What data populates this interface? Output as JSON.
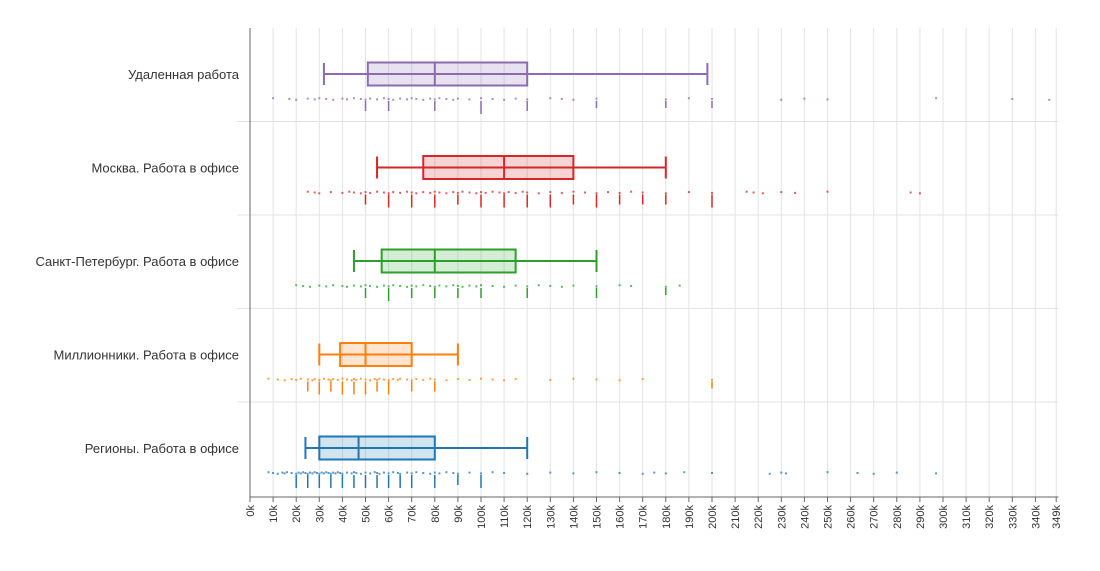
{
  "chart_data": {
    "type": "boxplot",
    "orientation": "horizontal",
    "title": "",
    "xlabel": "",
    "ylabel": "",
    "xlim": [
      0,
      350
    ],
    "x_ticks": [
      "0k",
      "10k",
      "20k",
      "30k",
      "40k",
      "50k",
      "60k",
      "70k",
      "80k",
      "90k",
      "100k",
      "110k",
      "120k",
      "130k",
      "140k",
      "150k",
      "160k",
      "170k",
      "180k",
      "190k",
      "200k",
      "210k",
      "220k",
      "230k",
      "240k",
      "250k",
      "260k",
      "270k",
      "280k",
      "290k",
      "300k",
      "310k",
      "320k",
      "330k",
      "340k",
      "349k"
    ],
    "x_tick_values": [
      0,
      10,
      20,
      30,
      40,
      50,
      60,
      70,
      80,
      90,
      100,
      110,
      120,
      130,
      140,
      150,
      160,
      170,
      180,
      190,
      200,
      210,
      220,
      230,
      240,
      250,
      260,
      270,
      280,
      290,
      300,
      310,
      320,
      330,
      340,
      349
    ],
    "grid": true,
    "series": [
      {
        "name": "Удаленная работа",
        "color": "#8c6bb1",
        "whisker_low": 32,
        "q1": 51,
        "median": 80,
        "q3": 120,
        "whisker_high": 198,
        "points": [
          10,
          17,
          20,
          25,
          28,
          30,
          33,
          36,
          40,
          42,
          45,
          48,
          50,
          52,
          55,
          58,
          60,
          62,
          65,
          68,
          70,
          72,
          75,
          78,
          80,
          82,
          85,
          88,
          90,
          95,
          100,
          105,
          110,
          115,
          120,
          130,
          135,
          140,
          150,
          180,
          190,
          200,
          230,
          240,
          250,
          297,
          330,
          346
        ],
        "ticks": [
          {
            "value": 50,
            "count": 2
          },
          {
            "value": 60,
            "count": 2
          },
          {
            "value": 80,
            "count": 2
          },
          {
            "value": 100,
            "count": 3
          },
          {
            "value": 120,
            "count": 2
          },
          {
            "value": 150,
            "count": 1
          },
          {
            "value": 180,
            "count": 1
          },
          {
            "value": 200,
            "count": 1
          }
        ]
      },
      {
        "name": "Москва. Работа в офисе",
        "color": "#d62728",
        "whisker_low": 55,
        "q1": 75,
        "median": 110,
        "q3": 140,
        "whisker_high": 180,
        "points": [
          25,
          28,
          30,
          35,
          40,
          43,
          45,
          48,
          50,
          52,
          55,
          58,
          60,
          62,
          65,
          68,
          70,
          72,
          75,
          78,
          80,
          82,
          85,
          88,
          90,
          92,
          95,
          98,
          100,
          102,
          105,
          108,
          110,
          112,
          115,
          118,
          120,
          125,
          130,
          135,
          140,
          145,
          150,
          155,
          160,
          165,
          170,
          180,
          190,
          200,
          215,
          218,
          222,
          230,
          236,
          250,
          286,
          290
        ],
        "ticks": [
          {
            "value": 50,
            "count": 2
          },
          {
            "value": 60,
            "count": 3
          },
          {
            "value": 70,
            "count": 3
          },
          {
            "value": 80,
            "count": 3
          },
          {
            "value": 90,
            "count": 2
          },
          {
            "value": 100,
            "count": 3
          },
          {
            "value": 110,
            "count": 3
          },
          {
            "value": 120,
            "count": 3
          },
          {
            "value": 130,
            "count": 3
          },
          {
            "value": 140,
            "count": 2
          },
          {
            "value": 150,
            "count": 3
          },
          {
            "value": 160,
            "count": 2
          },
          {
            "value": 170,
            "count": 2
          },
          {
            "value": 180,
            "count": 2
          },
          {
            "value": 200,
            "count": 3
          }
        ]
      },
      {
        "name": "Санкт-Петербург. Работа в офисе",
        "color": "#2ca02c",
        "whisker_low": 45,
        "q1": 57,
        "median": 80,
        "q3": 115,
        "whisker_high": 150,
        "points": [
          20,
          23,
          26,
          30,
          33,
          36,
          40,
          42,
          45,
          48,
          50,
          52,
          55,
          58,
          60,
          62,
          65,
          68,
          70,
          72,
          75,
          78,
          80,
          82,
          85,
          88,
          90,
          92,
          95,
          98,
          100,
          105,
          110,
          115,
          120,
          125,
          130,
          135,
          140,
          150,
          160,
          165,
          180,
          186
        ],
        "ticks": [
          {
            "value": 50,
            "count": 2
          },
          {
            "value": 60,
            "count": 3
          },
          {
            "value": 70,
            "count": 2
          },
          {
            "value": 80,
            "count": 2
          },
          {
            "value": 90,
            "count": 2
          },
          {
            "value": 100,
            "count": 2
          },
          {
            "value": 120,
            "count": 2
          },
          {
            "value": 150,
            "count": 2
          },
          {
            "value": 180,
            "count": 1
          }
        ]
      },
      {
        "name": "Миллионники. Работа в офисе",
        "color": "#ff7f0e",
        "whisker_low": 30,
        "q1": 39,
        "median": 50,
        "q3": 70,
        "whisker_high": 90,
        "points": [
          8,
          12,
          15,
          18,
          20,
          22,
          25,
          27,
          28,
          30,
          32,
          34,
          35,
          36,
          38,
          40,
          42,
          44,
          45,
          46,
          48,
          50,
          52,
          54,
          55,
          56,
          58,
          60,
          62,
          64,
          65,
          68,
          70,
          72,
          75,
          78,
          80,
          85,
          90,
          95,
          100,
          105,
          110,
          115,
          130,
          140,
          150,
          160,
          170,
          200
        ],
        "ticks": [
          {
            "value": 25,
            "count": 2
          },
          {
            "value": 30,
            "count": 3
          },
          {
            "value": 35,
            "count": 2
          },
          {
            "value": 40,
            "count": 3
          },
          {
            "value": 45,
            "count": 3
          },
          {
            "value": 50,
            "count": 3
          },
          {
            "value": 55,
            "count": 2
          },
          {
            "value": 60,
            "count": 3
          },
          {
            "value": 70,
            "count": 2
          },
          {
            "value": 80,
            "count": 2
          },
          {
            "value": 200,
            "count": 1
          }
        ]
      },
      {
        "name": "Регионы. Работа в офисе",
        "color": "#1f77b4",
        "whisker_low": 24,
        "q1": 30,
        "median": 47,
        "q3": 80,
        "whisker_high": 120,
        "points": [
          8,
          10,
          12,
          14,
          15,
          16,
          18,
          20,
          21,
          22,
          23,
          24,
          25,
          26,
          27,
          28,
          29,
          30,
          31,
          32,
          33,
          34,
          35,
          36,
          37,
          38,
          39,
          40,
          42,
          44,
          45,
          46,
          48,
          50,
          52,
          54,
          55,
          56,
          58,
          60,
          62,
          64,
          65,
          68,
          70,
          72,
          75,
          78,
          80,
          82,
          85,
          88,
          90,
          95,
          100,
          105,
          110,
          120,
          130,
          140,
          150,
          160,
          170,
          175,
          180,
          188,
          200,
          225,
          230,
          232,
          250,
          263,
          270,
          280,
          297
        ],
        "ticks": [
          {
            "value": 20,
            "count": 3
          },
          {
            "value": 25,
            "count": 3
          },
          {
            "value": 30,
            "count": 3
          },
          {
            "value": 35,
            "count": 3
          },
          {
            "value": 40,
            "count": 3
          },
          {
            "value": 45,
            "count": 3
          },
          {
            "value": 50,
            "count": 3
          },
          {
            "value": 55,
            "count": 3
          },
          {
            "value": 60,
            "count": 3
          },
          {
            "value": 65,
            "count": 3
          },
          {
            "value": 70,
            "count": 3
          },
          {
            "value": 80,
            "count": 3
          },
          {
            "value": 90,
            "count": 2
          },
          {
            "value": 100,
            "count": 3
          }
        ]
      }
    ]
  }
}
